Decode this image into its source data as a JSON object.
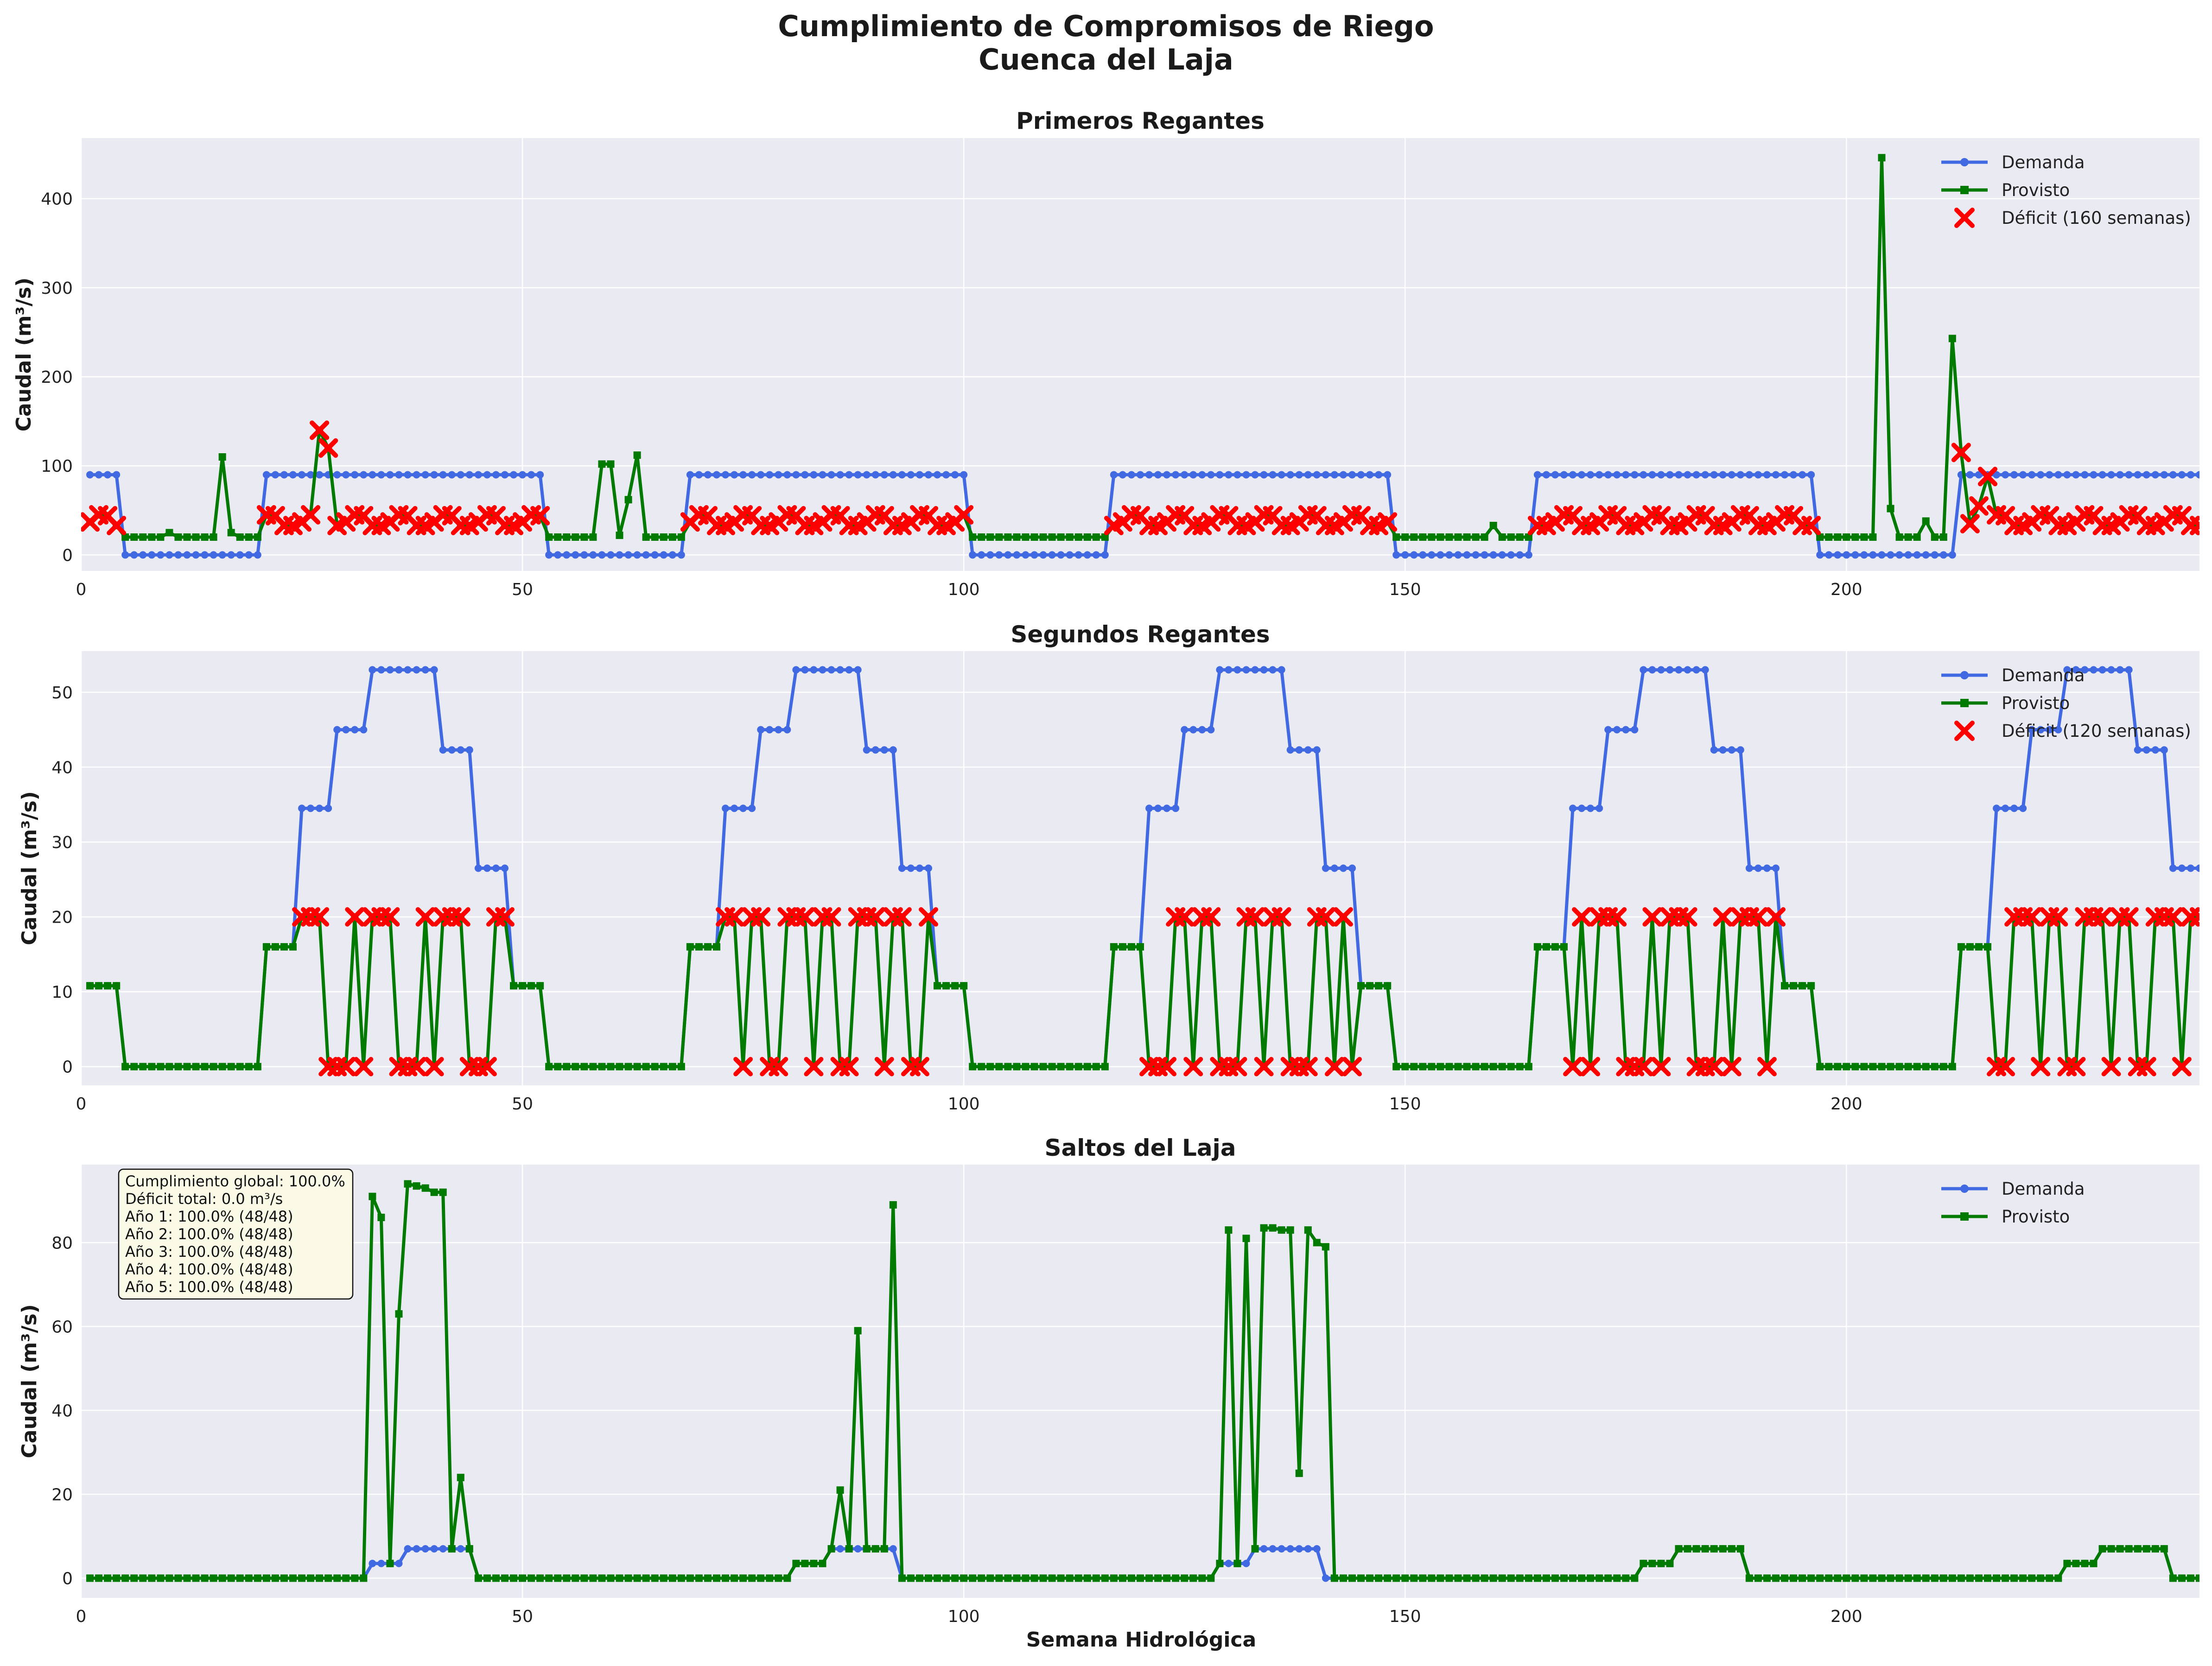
{
  "figure": {
    "title_line1": "Cumplimiento de Compromisos de Riego",
    "title_line2": "Cuenca del Laja",
    "xlabel": "Semana Hidrológica",
    "colors": {
      "demanda": "#4169e1",
      "provisto": "#007a00",
      "deficit": "#ff0000",
      "panel_bg": "#eaeaf2",
      "note_bg": "#fafae6"
    }
  },
  "chart_data": [
    {
      "type": "line",
      "title": "Primeros Regantes",
      "ylabel": "Caudal (m³/s)",
      "xlim": [
        0,
        240
      ],
      "ylim": [
        -18,
        468
      ],
      "xticks": [
        0,
        50,
        100,
        150,
        200
      ],
      "yticks": [
        0,
        100,
        200,
        300,
        400
      ],
      "grid": true,
      "legend_position": "top-right",
      "legend": [
        "Demanda",
        "Provisto",
        "Déficit (160 semanas)"
      ],
      "series": [
        {
          "name": "Demanda",
          "segments": [
            [
              1,
              4,
              90
            ],
            [
              5,
              20,
              0
            ],
            [
              21,
              52,
              90
            ],
            [
              53,
              68,
              0
            ],
            [
              69,
              100,
              90
            ],
            [
              101,
              116,
              0
            ],
            [
              117,
              148,
              90
            ],
            [
              149,
              164,
              0
            ],
            [
              165,
              196,
              90
            ],
            [
              197,
              212,
              0
            ],
            [
              213,
              240,
              90
            ]
          ]
        },
        {
          "name": "Provisto",
          "segments": [
            [
              5,
              20,
              20
            ],
            [
              53,
              68,
              20
            ],
            [
              101,
              116,
              20
            ],
            [
              149,
              164,
              20
            ],
            [
              197,
              212,
              20
            ]
          ],
          "points": [
            [
              10,
              25
            ],
            [
              16,
              110
            ],
            [
              17,
              25
            ],
            [
              27,
              140
            ],
            [
              28,
              120
            ],
            [
              59,
              102
            ],
            [
              60,
              102
            ],
            [
              61,
              22
            ],
            [
              62,
              62
            ],
            [
              63,
              112
            ],
            [
              160,
              33
            ],
            [
              204,
              446
            ],
            [
              205,
              52
            ],
            [
              209,
              38
            ],
            [
              212,
              243
            ],
            [
              213,
              115
            ],
            [
              214,
              35
            ],
            [
              215,
              55
            ],
            [
              216,
              88
            ]
          ]
        },
        {
          "name": "Déficit (160 semanas)",
          "note": "Markers on Provisto values during demand weeks (values approx. 33-55 m³/s)",
          "weeks": [
            [
              1,
              4
            ],
            [
              21,
              52
            ],
            [
              69,
              100
            ],
            [
              117,
              148
            ],
            [
              165,
              196
            ],
            [
              213,
              240
            ]
          ]
        }
      ]
    },
    {
      "type": "line",
      "title": "Segundos Regantes",
      "ylabel": "Caudal (m³/s)",
      "xlim": [
        0,
        240
      ],
      "ylim": [
        -2.5,
        55.5
      ],
      "xticks": [
        0,
        50,
        100,
        150,
        200
      ],
      "yticks": [
        0,
        10,
        20,
        30,
        40,
        50
      ],
      "grid": true,
      "legend_position": "top-right",
      "legend": [
        "Demanda",
        "Provisto",
        "Déficit (120 semanas)"
      ],
      "series": [
        {
          "name": "Demanda",
          "cycle_start_weeks": [
            1,
            49,
            97,
            145,
            193
          ],
          "cycle_pattern": [
            [
              0,
              3,
              10.8
            ],
            [
              4,
              19,
              0
            ],
            [
              20,
              23,
              16
            ],
            [
              24,
              27,
              34.5
            ],
            [
              28,
              31,
              45
            ],
            [
              32,
              39,
              53
            ],
            [
              40,
              43,
              42.3
            ],
            [
              44,
              47,
              26.5
            ]
          ]
        },
        {
          "name": "Provisto",
          "note": "Alternates between 20 and 0 m³/s during deficit weeks",
          "values_used": [
            0,
            10.8,
            16,
            20
          ]
        },
        {
          "name": "Déficit (120 semanas)",
          "values_used": [
            0,
            20
          ]
        }
      ]
    },
    {
      "type": "line",
      "title": "Saltos del Laja",
      "ylabel": "Caudal (m³/s)",
      "xlim": [
        0,
        240
      ],
      "ylim": [
        -4.7,
        98.6
      ],
      "xticks": [
        0,
        50,
        100,
        150,
        200
      ],
      "yticks": [
        0,
        20,
        40,
        60,
        80
      ],
      "grid": true,
      "legend_position": "top-right",
      "legend": [
        "Demanda",
        "Provisto"
      ],
      "annotation": [
        "Cumplimiento global: 100.0%",
        "Déficit total: 0.0 m³/s",
        "Año 1: 100.0% (48/48)",
        "Año 2: 100.0% (48/48)",
        "Año 3: 100.0% (48/48)",
        "Año 4: 100.0% (48/48)",
        "Año 5: 100.0% (48/48)"
      ],
      "series": [
        {
          "name": "Demanda",
          "segments": [
            [
              1,
              32,
              0
            ],
            [
              33,
              36,
              3.5
            ],
            [
              37,
              44,
              7
            ],
            [
              45,
              80,
              0
            ],
            [
              81,
              84,
              3.5
            ],
            [
              85,
              92,
              7
            ],
            [
              93,
              128,
              0
            ],
            [
              129,
              132,
              3.5
            ],
            [
              133,
              140,
              7
            ],
            [
              141,
              176,
              0
            ],
            [
              177,
              180,
              3.5
            ],
            [
              181,
              188,
              7
            ],
            [
              189,
              224,
              0
            ],
            [
              225,
              228,
              3.5
            ],
            [
              229,
              236,
              7
            ],
            [
              237,
              240,
              0
            ]
          ]
        },
        {
          "name": "Provisto",
          "points": [
            [
              33,
              91
            ],
            [
              34,
              86
            ],
            [
              35,
              3.5
            ],
            [
              36,
              63
            ],
            [
              37,
              94
            ],
            [
              38,
              93.5
            ],
            [
              39,
              93
            ],
            [
              40,
              92
            ],
            [
              41,
              92
            ],
            [
              42,
              7
            ],
            [
              43,
              24
            ],
            [
              44,
              7
            ],
            [
              86,
              21
            ],
            [
              87,
              7
            ],
            [
              88,
              59
            ],
            [
              89,
              7
            ],
            [
              92,
              89
            ],
            [
              130,
              83
            ],
            [
              131,
              3.5
            ],
            [
              132,
              81
            ],
            [
              133,
              7
            ],
            [
              134,
              83.5
            ],
            [
              135,
              83.5
            ],
            [
              136,
              83
            ],
            [
              137,
              83
            ],
            [
              138,
              25
            ],
            [
              139,
              83
            ],
            [
              140,
              80
            ],
            [
              141,
              79
            ]
          ]
        }
      ]
    }
  ]
}
